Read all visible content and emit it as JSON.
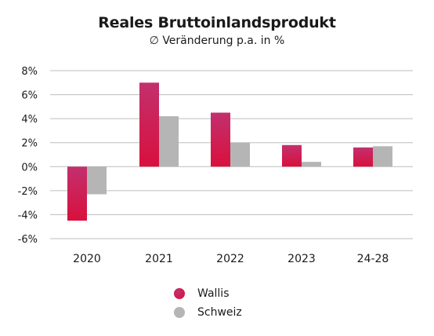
{
  "chart_data": {
    "type": "bar",
    "title": "Reales Bruttoinlandsprodukt",
    "subtitle": "∅ Veränderung p.a. in %",
    "categories": [
      "2020",
      "2021",
      "2022",
      "2023",
      "24-28"
    ],
    "series": [
      {
        "name": "Wallis",
        "values": [
          -4.5,
          7.0,
          4.5,
          1.8,
          1.6
        ],
        "color": "#d9103d",
        "color_top": "#c2306e"
      },
      {
        "name": "Schweiz",
        "values": [
          -2.3,
          4.2,
          2.0,
          0.4,
          1.7
        ],
        "color": "#b5b5b5"
      }
    ],
    "ylim": [
      -6,
      8
    ],
    "yticks": [
      8,
      6,
      4,
      2,
      0,
      -2,
      -4,
      -6
    ],
    "ytick_labels": [
      "8%",
      "6%",
      "4%",
      "2%",
      "0%",
      "-2%",
      "-4%",
      "-6%"
    ],
    "grid": true,
    "legend_position": "bottom"
  }
}
